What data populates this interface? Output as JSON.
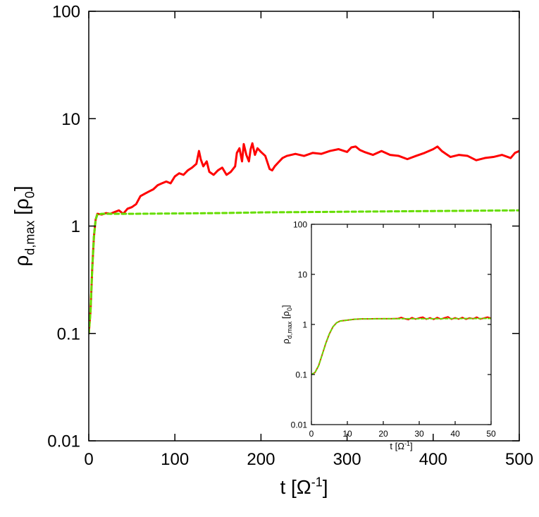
{
  "chart_data": [
    {
      "id": "main",
      "type": "line",
      "xlabel": "t [Ω⁻¹]",
      "ylabel": "ρd,max [ρ0]",
      "xlim": [
        0,
        500
      ],
      "ylim": [
        0.01,
        100
      ],
      "yscale": "log",
      "grid": false,
      "x_ticks": [
        {
          "value": 0,
          "label": "0"
        },
        {
          "value": 100,
          "label": "100"
        },
        {
          "value": 200,
          "label": "200"
        },
        {
          "value": 300,
          "label": "300"
        },
        {
          "value": 400,
          "label": "400"
        },
        {
          "value": 500,
          "label": "500"
        }
      ],
      "y_ticks": [
        {
          "value": 0.01,
          "label": "0.01"
        },
        {
          "value": 0.1,
          "label": "0.1"
        },
        {
          "value": 1,
          "label": "1"
        },
        {
          "value": 10,
          "label": "10"
        },
        {
          "value": 100,
          "label": "100"
        }
      ],
      "series": [
        {
          "color": "#ff0000",
          "style": "solid",
          "x": [
            0,
            2,
            4,
            6,
            8,
            10,
            15,
            20,
            25,
            30,
            35,
            40,
            45,
            50,
            55,
            60,
            65,
            70,
            75,
            80,
            85,
            90,
            95,
            100,
            105,
            110,
            115,
            120,
            125,
            128,
            130,
            133,
            137,
            140,
            145,
            150,
            155,
            160,
            165,
            170,
            172,
            175,
            178,
            180,
            183,
            186,
            188,
            190,
            193,
            196,
            200,
            205,
            210,
            213,
            216,
            220,
            225,
            230,
            240,
            250,
            260,
            270,
            280,
            290,
            300,
            305,
            310,
            315,
            320,
            330,
            340,
            350,
            360,
            370,
            380,
            390,
            400,
            405,
            410,
            420,
            430,
            440,
            450,
            460,
            470,
            480,
            490,
            495,
            500
          ],
          "y": [
            0.1,
            0.16,
            0.4,
            0.8,
            1.15,
            1.3,
            1.28,
            1.32,
            1.3,
            1.35,
            1.4,
            1.3,
            1.45,
            1.5,
            1.6,
            1.9,
            2.0,
            2.1,
            2.2,
            2.4,
            2.5,
            2.6,
            2.5,
            2.9,
            3.1,
            3.0,
            3.3,
            3.5,
            3.8,
            5.0,
            4.2,
            3.6,
            4.0,
            3.2,
            3.0,
            3.3,
            3.5,
            3.0,
            3.2,
            3.6,
            4.8,
            5.3,
            4.0,
            5.8,
            4.6,
            4.0,
            5.2,
            5.9,
            4.6,
            5.3,
            4.9,
            4.5,
            3.4,
            3.3,
            3.6,
            3.9,
            4.3,
            4.5,
            4.7,
            4.5,
            4.8,
            4.7,
            5.0,
            5.2,
            4.9,
            5.4,
            5.5,
            5.1,
            4.9,
            4.6,
            5.0,
            4.6,
            4.5,
            4.2,
            4.5,
            4.8,
            5.2,
            5.5,
            5.0,
            4.4,
            4.6,
            4.5,
            4.1,
            4.3,
            4.4,
            4.6,
            4.3,
            4.8,
            5.0
          ]
        },
        {
          "color": "#66dd00",
          "style": "dashed",
          "x": [
            0,
            2,
            4,
            6,
            8,
            10,
            15,
            20,
            30,
            50,
            100,
            150,
            200,
            250,
            300,
            350,
            400,
            450,
            500
          ],
          "y": [
            0.1,
            0.16,
            0.4,
            0.8,
            1.15,
            1.28,
            1.3,
            1.3,
            1.3,
            1.3,
            1.31,
            1.32,
            1.34,
            1.35,
            1.36,
            1.37,
            1.38,
            1.39,
            1.4
          ]
        }
      ]
    },
    {
      "id": "inset",
      "type": "line",
      "xlabel": "t [Ω⁻¹]",
      "ylabel": "ρd,max [ρ0]",
      "xlim": [
        0,
        50
      ],
      "ylim": [
        0.01,
        100
      ],
      "yscale": "log",
      "grid": false,
      "x_ticks": [
        {
          "value": 0,
          "label": "0"
        },
        {
          "value": 10,
          "label": "10"
        },
        {
          "value": 20,
          "label": "20"
        },
        {
          "value": 30,
          "label": "30"
        },
        {
          "value": 40,
          "label": "40"
        },
        {
          "value": 50,
          "label": "50"
        }
      ],
      "y_ticks": [
        {
          "value": 0.01,
          "label": "0.01"
        },
        {
          "value": 0.1,
          "label": "0.1"
        },
        {
          "value": 1,
          "label": "1"
        },
        {
          "value": 10,
          "label": "10"
        },
        {
          "value": 100,
          "label": "100"
        }
      ],
      "series": [
        {
          "color": "#ff0000",
          "style": "solid",
          "x": [
            0,
            1,
            2,
            3,
            4,
            5,
            6,
            7,
            8,
            10,
            12,
            14,
            16,
            18,
            20,
            22,
            24,
            25,
            26,
            27,
            28,
            29,
            30,
            31,
            32,
            33,
            34,
            35,
            36,
            37,
            38,
            39,
            40,
            41,
            42,
            43,
            44,
            45,
            46,
            47,
            48,
            49,
            50
          ],
          "y": [
            0.1,
            0.11,
            0.15,
            0.25,
            0.42,
            0.65,
            0.9,
            1.08,
            1.17,
            1.22,
            1.27,
            1.29,
            1.29,
            1.3,
            1.3,
            1.3,
            1.31,
            1.38,
            1.3,
            1.25,
            1.37,
            1.28,
            1.35,
            1.4,
            1.27,
            1.36,
            1.26,
            1.38,
            1.28,
            1.35,
            1.42,
            1.27,
            1.36,
            1.28,
            1.38,
            1.27,
            1.35,
            1.3,
            1.4,
            1.28,
            1.34,
            1.4,
            1.33
          ]
        },
        {
          "color": "#66dd00",
          "style": "dashed",
          "x": [
            0,
            1,
            2,
            3,
            4,
            5,
            6,
            7,
            8,
            10,
            12,
            14,
            16,
            20,
            25,
            30,
            35,
            40,
            45,
            50
          ],
          "y": [
            0.1,
            0.11,
            0.15,
            0.25,
            0.42,
            0.65,
            0.9,
            1.08,
            1.17,
            1.22,
            1.27,
            1.29,
            1.29,
            1.3,
            1.3,
            1.3,
            1.3,
            1.31,
            1.31,
            1.32
          ]
        }
      ]
    }
  ]
}
